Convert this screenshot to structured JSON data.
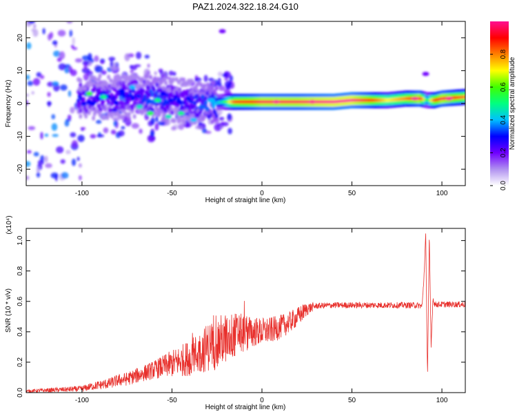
{
  "figure": {
    "title": "PAZ1.2024.322.18.24.G10"
  },
  "chart_data": [
    {
      "type": "heatmap",
      "title": "PAZ1.2024.322.18.24.G10",
      "xlabel": "Height of straight line (km)",
      "ylabel": "Frequency (Hz)",
      "xlim": [
        -131,
        113
      ],
      "ylim": [
        -25,
        25
      ],
      "xticks": [
        -100,
        -50,
        0,
        50,
        100
      ],
      "yticks": [
        -20,
        -10,
        0,
        10,
        20
      ],
      "xtick_labels": [
        "-100",
        "-50",
        "0",
        "50",
        "100"
      ],
      "ytick_labels": [
        "-20",
        "-10",
        "0",
        "10",
        "20"
      ],
      "grid": false,
      "colorbar": {
        "label": "Normalized spectral amplitude",
        "range": [
          0,
          1
        ],
        "ticks": [
          0.0,
          0.2,
          0.4,
          0.6,
          0.8
        ],
        "tick_labels": [
          "0.0",
          "0.2",
          "0.4",
          "0.6",
          "0.8"
        ],
        "colormap": "rainbow",
        "colors": [
          "#ffffff",
          "#b090f0",
          "#7000ff",
          "#0000ff",
          "#00c0ff",
          "#00ff80",
          "#40ff00",
          "#ffff00",
          "#ff8000",
          "#ff0000",
          "#ff1090"
        ]
      },
      "ridge": {
        "x": [
          -102,
          -90,
          -80,
          -70,
          -60,
          -50,
          -40,
          -30,
          -22,
          -15,
          -5,
          0,
          10,
          20,
          30,
          40,
          50,
          60,
          70,
          80,
          88,
          92,
          96,
          100,
          113
        ],
        "y": [
          1.5,
          2.0,
          2.0,
          2.5,
          2.0,
          1.0,
          0.5,
          0.0,
          0.5,
          0.5,
          0.5,
          0.5,
          0.5,
          0.5,
          0.5,
          0.5,
          1.0,
          1.0,
          1.0,
          1.5,
          1.5,
          1.0,
          1.0,
          1.5,
          2.0
        ],
        "amplitude": [
          0.3,
          0.3,
          0.3,
          0.3,
          0.35,
          0.3,
          0.3,
          0.35,
          0.45,
          0.85,
          0.9,
          0.95,
          0.95,
          0.95,
          0.98,
          1.0,
          1.0,
          0.9,
          0.7,
          0.8,
          0.95,
          0.5,
          0.85,
          0.95,
          0.8
        ]
      },
      "scatter_points": [
        {
          "x": -96,
          "y": 3,
          "a": 0.6
        },
        {
          "x": -88,
          "y": 2,
          "a": 0.5
        },
        {
          "x": -72,
          "y": 5,
          "a": 0.4
        },
        {
          "x": -68,
          "y": -1,
          "a": 0.45
        },
        {
          "x": -62,
          "y": -3,
          "a": 0.55
        },
        {
          "x": -58,
          "y": 1,
          "a": 0.5
        },
        {
          "x": -52,
          "y": -4,
          "a": 0.45
        },
        {
          "x": -45,
          "y": -3,
          "a": 0.5
        },
        {
          "x": -38,
          "y": -5,
          "a": 0.4
        },
        {
          "x": -33,
          "y": -1,
          "a": 0.35
        },
        {
          "x": -28,
          "y": 1,
          "a": 0.4
        },
        {
          "x": 8,
          "y": 0.5,
          "a": 1.0
        },
        {
          "x": 28,
          "y": 0.5,
          "a": 1.0
        },
        {
          "x": 85,
          "y": 1.5,
          "a": 1.0
        },
        {
          "x": 104,
          "y": 1.5,
          "a": 1.0
        },
        {
          "x": -78,
          "y": 4,
          "a": 0.3
        },
        {
          "x": -82,
          "y": -2,
          "a": 0.25
        },
        {
          "x": -55,
          "y": 3,
          "a": 0.3
        },
        {
          "x": -22,
          "y": 22,
          "a": 0.2
        },
        {
          "x": 91,
          "y": 9,
          "a": 0.2
        }
      ]
    },
    {
      "type": "line",
      "xlabel": "Height of straight line (km)",
      "ylabel": "SNR (10 * v/v)",
      "y_multiplier": "(x10⁴)",
      "xlim": [
        -131,
        113
      ],
      "ylim": [
        0,
        1.08
      ],
      "xticks": [
        -100,
        -50,
        0,
        50,
        100
      ],
      "yticks": [
        0.0,
        0.2,
        0.4,
        0.6,
        0.8,
        1.0
      ],
      "xtick_labels": [
        "-100",
        "-50",
        "0",
        "50",
        "100"
      ],
      "ytick_labels": [
        "0.0",
        "0.2",
        "0.4",
        "0.6",
        "0.8",
        "1.0"
      ],
      "grid": false,
      "color": "#e8302c",
      "envelope": {
        "x": [
          -131,
          -120,
          -110,
          -100,
          -95,
          -90,
          -85,
          -80,
          -75,
          -70,
          -65,
          -60,
          -55,
          -50,
          -45,
          -40,
          -35,
          -30,
          -25,
          -20,
          -15,
          -10,
          -5,
          0,
          5,
          10,
          15,
          20,
          25,
          30,
          40,
          50,
          60,
          70,
          80,
          85,
          89,
          90,
          91,
          92,
          93,
          94,
          95,
          96,
          100,
          105,
          110,
          113
        ],
        "y": [
          0.01,
          0.015,
          0.02,
          0.025,
          0.04,
          0.05,
          0.06,
          0.08,
          0.09,
          0.11,
          0.13,
          0.15,
          0.17,
          0.19,
          0.21,
          0.23,
          0.26,
          0.3,
          0.33,
          0.36,
          0.38,
          0.39,
          0.4,
          0.4,
          0.41,
          0.43,
          0.46,
          0.5,
          0.55,
          0.57,
          0.575,
          0.575,
          0.575,
          0.575,
          0.575,
          0.575,
          0.57,
          0.75,
          1.04,
          0.1,
          1.04,
          0.3,
          0.62,
          0.58,
          0.58,
          0.58,
          0.58,
          0.58
        ]
      },
      "noise_amplitude": {
        "x": [
          -131,
          -100,
          -60,
          -40,
          -25,
          -15,
          -5,
          10,
          22,
          30,
          113
        ],
        "y": [
          0.01,
          0.02,
          0.06,
          0.12,
          0.18,
          0.15,
          0.1,
          0.08,
          0.06,
          0.02,
          0.02
        ]
      }
    }
  ]
}
